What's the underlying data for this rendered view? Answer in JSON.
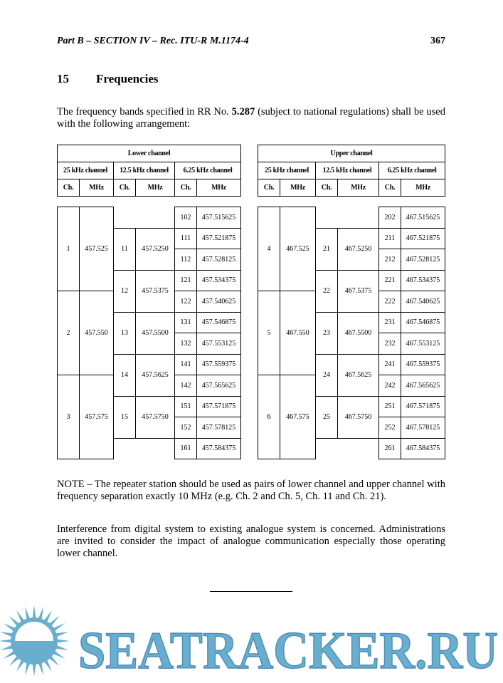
{
  "header": {
    "running_title": "Part B – SECTION IV – Rec. ITU-R M.1174-4",
    "page_number": "367"
  },
  "section": {
    "number": "15",
    "title": "Frequencies"
  },
  "intro": {
    "before": "The frequency bands specified in RR No. ",
    "ref": "5.287",
    "after": " (subject to national regulations) shall be used with the following arrangement:"
  },
  "table": {
    "groups": [
      "Lower channel",
      "Upper channel"
    ],
    "bandwidths": [
      "25 kHz channel",
      "12.5 kHz channel",
      "6.25 kHz channel"
    ],
    "col_ch": "Ch.",
    "col_mhz": "MHz",
    "lower": {
      "ch25": [
        [
          "1",
          "457.525"
        ],
        [
          "2",
          "457.550"
        ],
        [
          "3",
          "457.575"
        ]
      ],
      "ch125": [
        [
          "11",
          "457.5250"
        ],
        [
          "12",
          "457.5375"
        ],
        [
          "13",
          "457.5500"
        ],
        [
          "14",
          "457.5625"
        ],
        [
          "15",
          "457.5750"
        ]
      ],
      "ch625": [
        [
          "102",
          "457.515625"
        ],
        [
          "111",
          "457.521875"
        ],
        [
          "112",
          "457.528125"
        ],
        [
          "121",
          "457.534375"
        ],
        [
          "122",
          "457.540625"
        ],
        [
          "131",
          "457.546875"
        ],
        [
          "132",
          "457.553125"
        ],
        [
          "141",
          "457.559375"
        ],
        [
          "142",
          "457.565625"
        ],
        [
          "151",
          "457.571875"
        ],
        [
          "152",
          "457.578125"
        ],
        [
          "161",
          "457.584375"
        ]
      ]
    },
    "upper": {
      "ch25": [
        [
          "4",
          "467.525"
        ],
        [
          "5",
          "467.550"
        ],
        [
          "6",
          "467.575"
        ]
      ],
      "ch125": [
        [
          "21",
          "467.5250"
        ],
        [
          "22",
          "467.5375"
        ],
        [
          "23",
          "467.5500"
        ],
        [
          "24",
          "467.5625"
        ],
        [
          "25",
          "467.5750"
        ]
      ],
      "ch625": [
        [
          "202",
          "467.515625"
        ],
        [
          "211",
          "467.521875"
        ],
        [
          "212",
          "467.528125"
        ],
        [
          "221",
          "467.534375"
        ],
        [
          "222",
          "467.540625"
        ],
        [
          "231",
          "467.546875"
        ],
        [
          "232",
          "467.553125"
        ],
        [
          "241",
          "467.559375"
        ],
        [
          "242",
          "467.565625"
        ],
        [
          "251",
          "467.571875"
        ],
        [
          "252",
          "467.578125"
        ],
        [
          "261",
          "467.584375"
        ]
      ]
    }
  },
  "note": "NOTE – The repeater station should be used as pairs of lower channel and upper channel with frequency separation exactly 10 MHz (e.g. Ch. 2 and Ch. 5, Ch. 11 and Ch. 21).",
  "paragraph": "Interference from digital system to existing analogue system is concerned. Administrations are invited to consider the impact of analogue communication especially those operating lower channel.",
  "watermark": {
    "text": "SEATRACKER.RU",
    "color": "#6aaecf"
  }
}
